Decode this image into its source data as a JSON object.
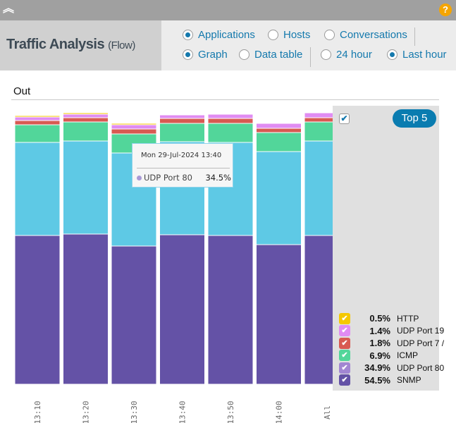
{
  "header": {
    "collapse_icon": "double-chevron-up-icon",
    "help_icon": "question-icon",
    "help_label": "?",
    "title": "Traffic Analysis",
    "subtitle": "(Flow)"
  },
  "options": {
    "view": [
      {
        "label": "Applications",
        "checked": true
      },
      {
        "label": "Hosts",
        "checked": false
      },
      {
        "label": "Conversations",
        "checked": false
      }
    ],
    "mode": [
      {
        "label": "Graph",
        "checked": true
      },
      {
        "label": "Data table",
        "checked": false
      }
    ],
    "range": [
      {
        "label": "24 hour",
        "checked": false
      },
      {
        "label": "Last hour",
        "checked": true
      }
    ]
  },
  "section_title": "Out",
  "legend": {
    "all_checked": true,
    "check_mark": "✔",
    "top_button": "Top 5",
    "items": [
      {
        "pct": "0.5%",
        "name": "HTTP",
        "color": "#f5c800",
        "checked": true
      },
      {
        "pct": "1.4%",
        "name": "UDP Port 19",
        "color": "#e08cf2",
        "checked": true
      },
      {
        "pct": "1.8%",
        "name": "UDP Port 7 /",
        "color": "#d85a52",
        "checked": true
      },
      {
        "pct": "6.9%",
        "name": "ICMP",
        "color": "#52d69a",
        "checked": true
      },
      {
        "pct": "34.9%",
        "name": "UDP Port 80",
        "color": "#a286d2",
        "checked": true
      },
      {
        "pct": "54.5%",
        "name": "SNMP",
        "color": "#6452a6",
        "checked": true
      }
    ]
  },
  "tooltip": {
    "title": "Mon 29-Jul-2024 13:40",
    "series": "UDP Port 80",
    "value": "34.5%",
    "color": "#a99ad6"
  },
  "chart_data": {
    "type": "bar",
    "stacked": true,
    "units": "relative (no y-axis shown)",
    "categories": [
      "13:10",
      "13:20",
      "13:30",
      "13:40",
      "13:50",
      "14:00",
      "All"
    ],
    "ylim": [
      0,
      400
    ],
    "grid": false,
    "legend_placement": "right",
    "series": [
      {
        "name": "SNMP",
        "color": "#6452a6",
        "values": [
          211,
          213,
          196,
          212,
          211,
          198,
          211
        ]
      },
      {
        "name": "UDP Port 80",
        "color": "#5ec9e5",
        "values": [
          132,
          132,
          132,
          132,
          132,
          132,
          134
        ]
      },
      {
        "name": "ICMP",
        "color": "#52d69a",
        "values": [
          25,
          27,
          27,
          26,
          27,
          27,
          27
        ]
      },
      {
        "name": "UDP Port 7 /",
        "color": "#d85a52",
        "values": [
          6,
          6,
          7,
          7,
          7,
          6,
          6
        ]
      },
      {
        "name": "UDP Port 19",
        "color": "#e08cf2",
        "values": [
          5,
          5,
          6,
          5,
          6,
          7,
          7
        ]
      },
      {
        "name": "HTTP",
        "color": "#f5c800",
        "values": [
          2,
          2,
          2,
          1,
          1,
          1,
          1
        ]
      }
    ]
  }
}
